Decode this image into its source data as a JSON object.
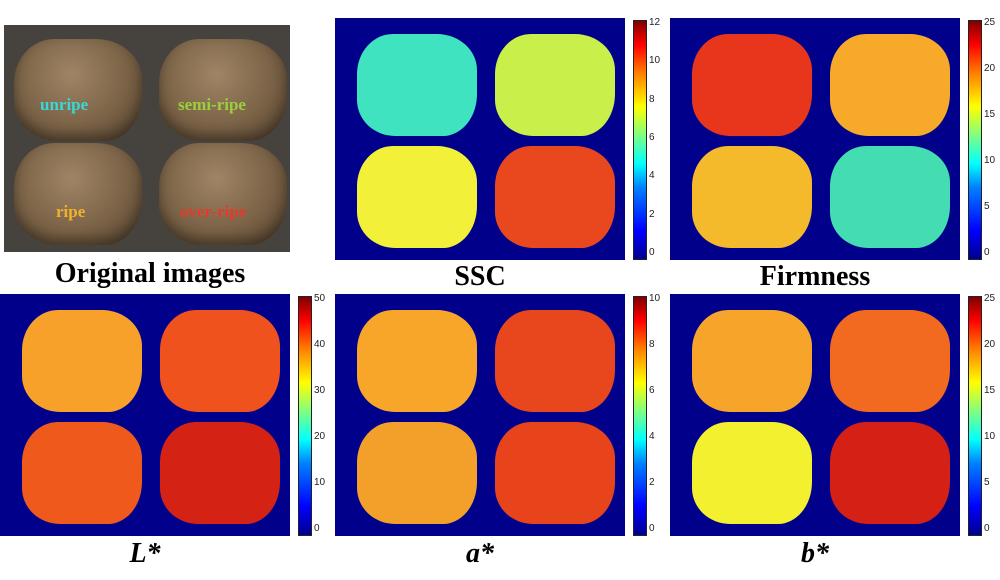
{
  "photo": {
    "labels": {
      "unripe": "unripe",
      "semi_ripe": "semi-ripe",
      "ripe": "ripe",
      "over_ripe": "over-ripe"
    },
    "label_colors": {
      "unripe": "#39d8d8",
      "semi_ripe": "#9bcf3c",
      "ripe": "#f0b22a",
      "over_ripe": "#e33a2a"
    },
    "caption": "Original images"
  },
  "panels": {
    "ssc": {
      "caption": "SSC",
      "ticks": [
        "12",
        "10",
        "8",
        "6",
        "4",
        "2",
        "0"
      ],
      "colors": [
        "#3fe3c0",
        "#c9f04a",
        "#f3f03a",
        "#e9481e"
      ]
    },
    "firmness": {
      "caption": "Firmness",
      "ticks": [
        "25",
        "20",
        "15",
        "10",
        "5",
        "0"
      ],
      "colors": [
        "#e8361d",
        "#f7aa2a",
        "#f5b92c",
        "#44ddb2"
      ]
    },
    "lstar": {
      "caption": "L*",
      "ticks": [
        "50",
        "40",
        "30",
        "20",
        "10",
        "0"
      ],
      "colors": [
        "#f7a02a",
        "#f0521d",
        "#ef5a1c",
        "#d42314"
      ]
    },
    "astar": {
      "caption": "a*",
      "ticks": [
        "10",
        "8",
        "6",
        "4",
        "2",
        "0"
      ],
      "colors": [
        "#f7a62a",
        "#e8461c",
        "#f3a02b",
        "#e8441c"
      ]
    },
    "bstar": {
      "caption": "b*",
      "ticks": [
        "25",
        "20",
        "15",
        "10",
        "5",
        "0"
      ],
      "colors": [
        "#f6a52a",
        "#f26a1f",
        "#f3f02f",
        "#d42015"
      ]
    }
  }
}
